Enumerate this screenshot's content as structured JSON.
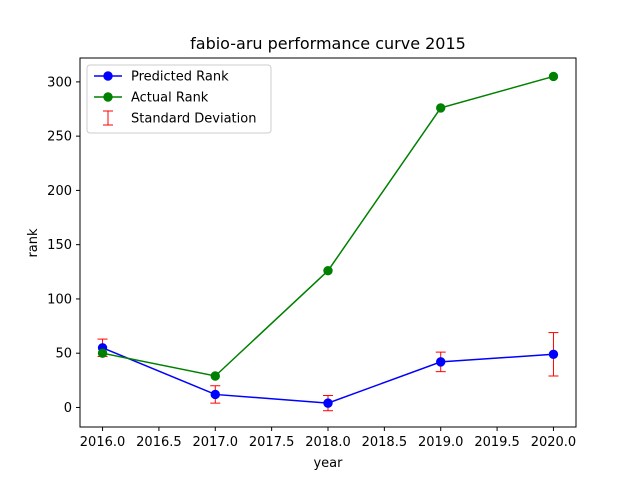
{
  "chart_data": {
    "type": "line",
    "title": "fabio-aru performance curve 2015",
    "xlabel": "year",
    "ylabel": "rank",
    "xlim": [
      2015.8,
      2020.2
    ],
    "ylim": [
      -18,
      322
    ],
    "xticks": [
      2016.0,
      2016.5,
      2017.0,
      2017.5,
      2018.0,
      2018.5,
      2019.0,
      2019.5,
      2020.0
    ],
    "xtick_labels": [
      "2016.0",
      "2016.5",
      "2017.0",
      "2017.5",
      "2018.0",
      "2018.5",
      "2019.0",
      "2019.5",
      "2020.0"
    ],
    "yticks": [
      0,
      50,
      100,
      150,
      200,
      250,
      300
    ],
    "ytick_labels": [
      "0",
      "50",
      "100",
      "150",
      "200",
      "250",
      "300"
    ],
    "grid": false,
    "legend_position": "top-left",
    "series": [
      {
        "name": "Predicted Rank",
        "color": "#0000ff",
        "x": [
          2016,
          2017,
          2018,
          2019,
          2020
        ],
        "y": [
          55,
          12,
          4,
          42,
          49
        ]
      },
      {
        "name": "Actual Rank",
        "color": "#008000",
        "x": [
          2016,
          2017,
          2018,
          2019,
          2020
        ],
        "y": [
          50,
          29,
          126,
          276,
          305
        ]
      }
    ],
    "error_bars": {
      "name": "Standard Deviation",
      "color": "#ff0000",
      "x": [
        2016,
        2017,
        2018,
        2019,
        2020
      ],
      "y": [
        55,
        12,
        4,
        42,
        49
      ],
      "err": [
        8,
        8,
        7,
        9,
        20
      ]
    }
  }
}
